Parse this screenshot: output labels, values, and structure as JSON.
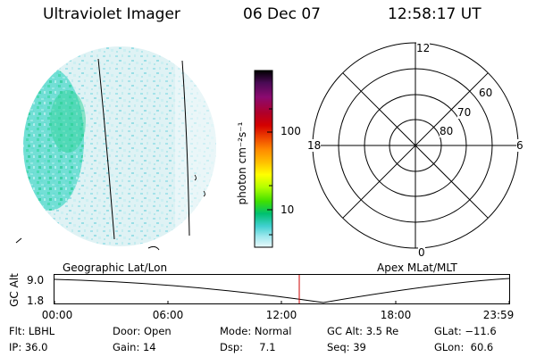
{
  "header": {
    "instrument": "Ultraviolet Imager",
    "date": "06 Dec 07",
    "time": "12:58:17 UT"
  },
  "colorbar": {
    "label": "photon cm⁻²s⁻¹",
    "ticks": [
      "100",
      "10"
    ],
    "colors": [
      "#000000",
      "#4a0a55",
      "#8b0a70",
      "#b0002a",
      "#d40000",
      "#ee4400",
      "#ff8c00",
      "#ffc000",
      "#ffff00",
      "#b4ff00",
      "#40e000",
      "#00c070",
      "#40d0d0",
      "#a0e8ee",
      "#e8f8fa"
    ]
  },
  "polar_plot": {
    "mlt_labels": [
      "12",
      "18",
      "6",
      "0"
    ],
    "mlat_labels": [
      "60",
      "70",
      "80"
    ]
  },
  "timeline": {
    "left_caption": "Geographic Lat/Lon",
    "right_caption": "Apex MLat/MLT",
    "y_axis_label": "GC Alt",
    "y_ticks": [
      "9.0",
      "1.8"
    ],
    "x_ticks": [
      "00:00",
      "06:00",
      "12:00",
      "18:00",
      "23:59"
    ],
    "current_time_color": "#cc0000"
  },
  "footer": {
    "row1": [
      "Flt: LBHL",
      "Door: Open",
      "Mode: Normal",
      "GC Alt: 3.5 Re",
      "GLat: −11.6"
    ],
    "row2": [
      "IP: 36.0",
      "Gain: 14",
      "Dsp:     7.1",
      "Seq: 39",
      "GLon:  60.6"
    ]
  }
}
